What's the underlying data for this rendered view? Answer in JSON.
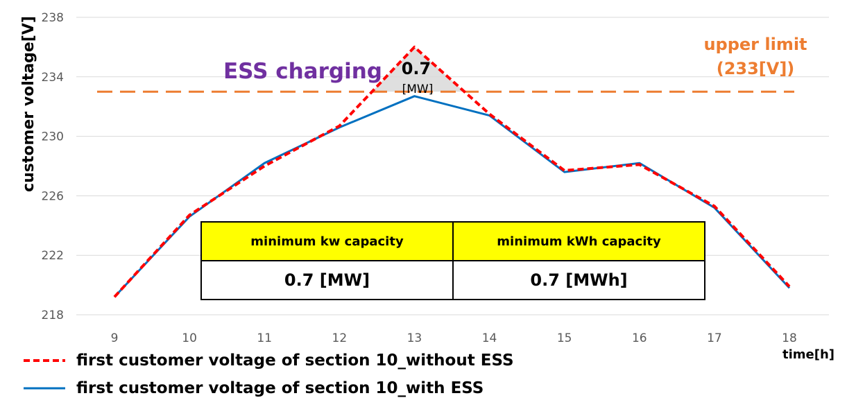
{
  "chart_data": {
    "type": "line",
    "ylabel": "customer voltage[V]",
    "xlabel": "time[h]",
    "ylim": [
      218,
      238
    ],
    "yticks": [
      "218",
      "222",
      "226",
      "230",
      "234",
      "238"
    ],
    "x": [
      9,
      10,
      11,
      12,
      13,
      14,
      15,
      16,
      17,
      18
    ],
    "xticks": [
      "9",
      "10",
      "11",
      "12",
      "13",
      "14",
      "15",
      "16",
      "17",
      "18"
    ],
    "grid": "horizontal",
    "series": [
      {
        "name": "first customer voltage of section 10_without ESS",
        "values": [
          219.2,
          224.7,
          228.0,
          230.7,
          236.0,
          231.5,
          227.7,
          228.1,
          225.3,
          219.9
        ],
        "color": "#ff0000",
        "style": "dashed"
      },
      {
        "name": "first customer voltage of section 10_with ESS",
        "values": [
          219.2,
          224.6,
          228.2,
          230.6,
          232.7,
          231.4,
          227.6,
          228.2,
          225.2,
          219.8
        ],
        "color": "#0070c0",
        "style": "solid"
      }
    ],
    "reference_line": {
      "value": 233,
      "color": "#ed7d31",
      "style": "dashed"
    },
    "annotations": {
      "ess_charging": "ESS charging",
      "upper_limit_line1": "upper limit",
      "upper_limit_line2": "(233[V])",
      "peak_value": "0.7",
      "peak_unit": "[MW]"
    },
    "colors": {
      "ess_text": "#7030a0",
      "limit": "#ed7d31",
      "shade": "#d9d9d9"
    }
  },
  "table": {
    "headers": [
      "minimum kw capacity",
      "minimum kWh capacity"
    ],
    "values": [
      "0.7 [MW]",
      "0.7 [MWh]"
    ],
    "header_color": "#ffff00"
  },
  "legend": [
    "first customer voltage of section 10_without ESS",
    "first customer voltage of section 10_with ESS"
  ]
}
